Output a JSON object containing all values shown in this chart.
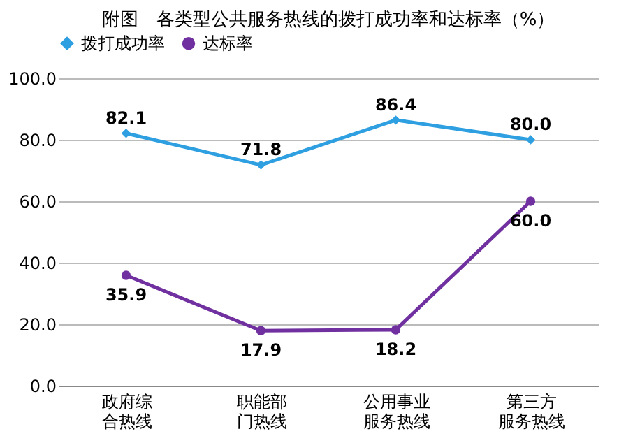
{
  "chart_data": {
    "type": "line",
    "title": "附图　各类型公共服务热线的拨打成功率和达标率（%）",
    "categories": [
      "政府综合热线",
      "职能部门热线",
      "公用事业服务热线",
      "第三方服务热线"
    ],
    "series": [
      {
        "name": "拨打成功率",
        "color": "#2e9fe0",
        "marker": "diamond",
        "values": [
          82.1,
          71.8,
          86.4,
          80.0
        ],
        "value_labels": [
          "82.1",
          "71.8",
          "86.4",
          "80.0"
        ]
      },
      {
        "name": "达标率",
        "color": "#7030a0",
        "marker": "circle",
        "values": [
          35.9,
          17.9,
          18.2,
          60.0
        ],
        "value_labels": [
          "35.9",
          "17.9",
          "18.2",
          "60.0"
        ]
      }
    ],
    "ylim": [
      0,
      100
    ],
    "yticks": [
      {
        "value": 0,
        "label": "0.0"
      },
      {
        "value": 20,
        "label": "20.0"
      },
      {
        "value": 40,
        "label": "40.0"
      },
      {
        "value": 60,
        "label": "60.0"
      },
      {
        "value": 80,
        "label": "80.0"
      },
      {
        "value": 100,
        "label": "100.0"
      }
    ],
    "grid": "y",
    "legend": "top",
    "line_style": "solid"
  }
}
